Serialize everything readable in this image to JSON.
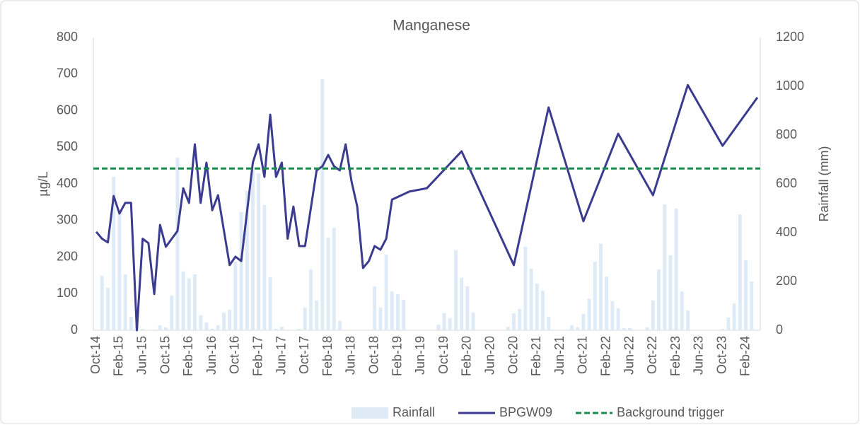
{
  "chart_data": {
    "type": "bar",
    "title": "Manganese",
    "y_label": "µg/L",
    "y2_label": "Rainfall (mm)",
    "categories": [
      "Oct-14",
      null,
      null,
      null,
      "Feb-15",
      null,
      null,
      null,
      "Jun-15",
      null,
      null,
      null,
      "Oct-15",
      null,
      null,
      null,
      "Feb-16",
      null,
      null,
      null,
      "Jun-16",
      null,
      null,
      null,
      "Oct-16",
      null,
      null,
      null,
      "Feb-17",
      null,
      null,
      null,
      "Jun-17",
      null,
      null,
      null,
      "Oct-17",
      null,
      null,
      null,
      "Feb-18",
      null,
      null,
      null,
      "Jun-18",
      null,
      null,
      null,
      "Oct-18",
      null,
      null,
      null,
      "Feb-19",
      null,
      null,
      null,
      "Jun-19",
      null,
      null,
      null,
      "Oct-19",
      null,
      null,
      null,
      "Feb-20",
      null,
      null,
      null,
      "Jun-20",
      null,
      null,
      null,
      "Oct-20",
      null,
      null,
      null,
      "Feb-21",
      null,
      null,
      null,
      "Jun-21",
      null,
      null,
      null,
      "Oct-21",
      null,
      null,
      null,
      "Feb-22",
      null,
      null,
      null,
      "Jun-22",
      null,
      null,
      null,
      "Oct-22",
      null,
      null,
      null,
      "Feb-23",
      null,
      null,
      null,
      "Jun-23",
      null,
      null,
      null,
      "Oct-23",
      null,
      null,
      null,
      "Feb-24",
      null,
      null
    ],
    "series": [
      {
        "name": "Rainfall",
        "type": "bar",
        "axis": "y2",
        "color": "#deebf7",
        "values": [
          0,
          223,
          174,
          629,
          484,
          229,
          55,
          26,
          6,
          0,
          0,
          20,
          12,
          142,
          707,
          241,
          212,
          229,
          61,
          32,
          6,
          20,
          72,
          84,
          281,
          484,
          571,
          658,
          643,
          513,
          217,
          6,
          14,
          0,
          0,
          6,
          93,
          249,
          122,
          1029,
          380,
          420,
          38,
          0,
          0,
          0,
          0,
          0,
          180,
          93,
          310,
          159,
          148,
          125,
          0,
          0,
          0,
          0,
          0,
          23,
          70,
          49,
          328,
          215,
          180,
          72,
          0,
          0,
          0,
          0,
          0,
          14,
          70,
          87,
          342,
          252,
          191,
          162,
          55,
          0,
          0,
          0,
          20,
          12,
          67,
          130,
          281,
          354,
          220,
          119,
          90,
          9,
          9,
          0,
          0,
          12,
          122,
          249,
          516,
          307,
          499,
          159,
          81,
          0,
          0,
          0,
          0,
          0,
          6,
          52,
          110,
          475,
          287,
          200,
          0
        ]
      },
      {
        "name": "BPGW09",
        "type": "line",
        "color": "#3b3b8f",
        "x": [
          "Oct-14",
          "Nov-14",
          "Dec-14",
          "Jan-15",
          "Feb-15",
          "Mar-15",
          "Apr-15",
          "May-15",
          "Jun-15",
          "Jul-15",
          "Aug-15",
          "Sep-15",
          "Oct-15",
          "Dec-15",
          "Jan-16",
          "Feb-16",
          "Mar-16",
          "Apr-16",
          "May-16",
          "Jun-16",
          "Jul-16",
          "Sep-16",
          "Oct-16",
          "Nov-16",
          "Jan-17",
          "Feb-17",
          "Mar-17",
          "Apr-17",
          "May-17",
          "Jun-17",
          "Jul-17",
          "Aug-17",
          "Sep-17",
          "Oct-17",
          "Dec-17",
          "Jan-18",
          "Feb-18",
          "Mar-18",
          "Apr-18",
          "May-18",
          "Jun-18",
          "Jul-18",
          "Aug-18",
          "Sep-18",
          "Oct-18",
          "Nov-18",
          "Dec-18",
          "Jan-19",
          "Apr-19",
          "Jul-19",
          "Jan-20",
          "Oct-20",
          "Apr-21",
          "Oct-21",
          "Apr-22",
          "Oct-22",
          "Apr-23",
          "Oct-23",
          "Apr-24"
        ],
        "values": [
          269,
          250,
          240,
          367,
          319,
          348,
          348,
          0,
          250,
          238,
          99,
          288,
          228,
          271,
          388,
          348,
          508,
          348,
          458,
          328,
          369,
          178,
          201,
          189,
          458,
          508,
          419,
          589,
          419,
          458,
          250,
          338,
          230,
          230,
          437,
          448,
          479,
          448,
          437,
          508,
          408,
          338,
          170,
          189,
          230,
          220,
          250,
          357,
          379,
          388,
          489,
          178,
          609,
          298,
          537,
          369,
          670,
          504,
          636
        ]
      },
      {
        "name": "Background trigger",
        "type": "hline",
        "color": "#1a8a4e",
        "value": 442
      }
    ],
    "ylim": [
      0,
      800
    ],
    "yticks": [
      0,
      100,
      200,
      300,
      400,
      500,
      600,
      700,
      800
    ],
    "y2lim": [
      0,
      1200
    ],
    "y2ticks": [
      0,
      200,
      400,
      600,
      800,
      1000,
      1200
    ],
    "legend": "bottom"
  }
}
